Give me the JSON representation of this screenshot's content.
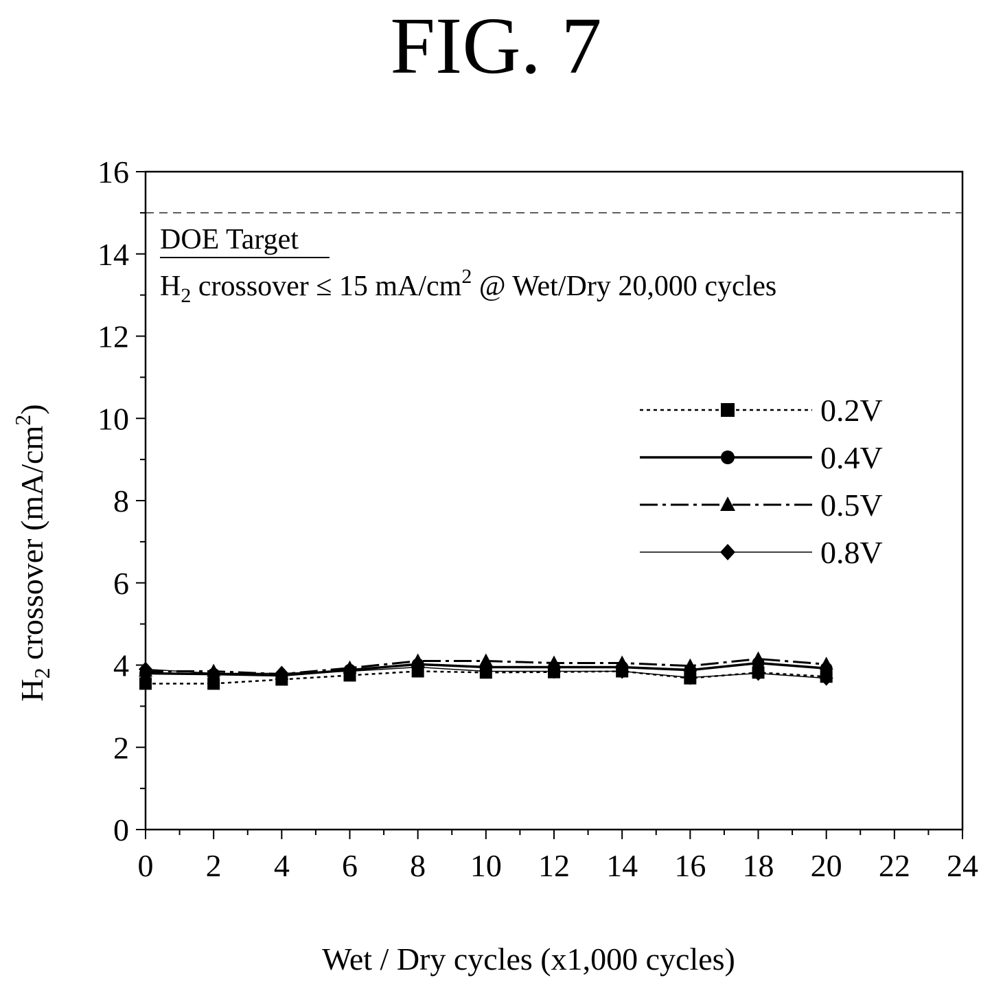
{
  "figure_label": "FIG. 7",
  "chart_data": {
    "type": "line",
    "xlabel": "Wet / Dry cycles (x1,000 cycles)",
    "ylabel": {
      "prefix": "H",
      "sub": "2",
      "mid": " crossover (mA/cm",
      "sup": "2",
      "suffix": ")"
    },
    "xlim": [
      0,
      24
    ],
    "ylim": [
      0,
      16
    ],
    "xticks": [
      0,
      2,
      4,
      6,
      8,
      10,
      12,
      14,
      16,
      18,
      20,
      22,
      24
    ],
    "yticks": [
      0,
      2,
      4,
      6,
      8,
      10,
      12,
      14,
      16
    ],
    "x": [
      0,
      2,
      4,
      6,
      8,
      10,
      12,
      14,
      16,
      18,
      20
    ],
    "series": [
      {
        "name": "0.2V",
        "marker": "square",
        "dash": "dotted",
        "width": 2.5,
        "values": [
          3.55,
          3.55,
          3.65,
          3.75,
          3.85,
          3.82,
          3.83,
          3.85,
          3.68,
          3.82,
          3.72
        ]
      },
      {
        "name": "0.4V",
        "marker": "circle",
        "dash": "solid",
        "width": 3.5,
        "values": [
          3.8,
          3.78,
          3.75,
          3.88,
          4.02,
          3.95,
          3.95,
          3.95,
          3.88,
          4.05,
          3.92
        ]
      },
      {
        "name": "0.5V",
        "marker": "triangle",
        "dash": "dashdot",
        "width": 3,
        "values": [
          3.85,
          3.85,
          3.78,
          3.93,
          4.1,
          4.1,
          4.05,
          4.05,
          3.98,
          4.15,
          4.02
        ]
      },
      {
        "name": "0.8V",
        "marker": "diamond",
        "dash": "solid",
        "width": 1.5,
        "values": [
          3.9,
          3.8,
          3.8,
          3.85,
          3.95,
          3.85,
          3.85,
          3.85,
          3.7,
          3.8,
          3.68
        ]
      }
    ],
    "reference_line": {
      "y": 15,
      "style": "dashed"
    },
    "annotation": {
      "heading": "DOE Target",
      "line": {
        "prefix": "H",
        "sub": "2",
        "mid": " crossover ≤ 15 mA/cm",
        "sup": "2",
        "suffix": " @ Wet/Dry 20,000 cycles"
      }
    },
    "legend_position": "right",
    "grid": false
  }
}
